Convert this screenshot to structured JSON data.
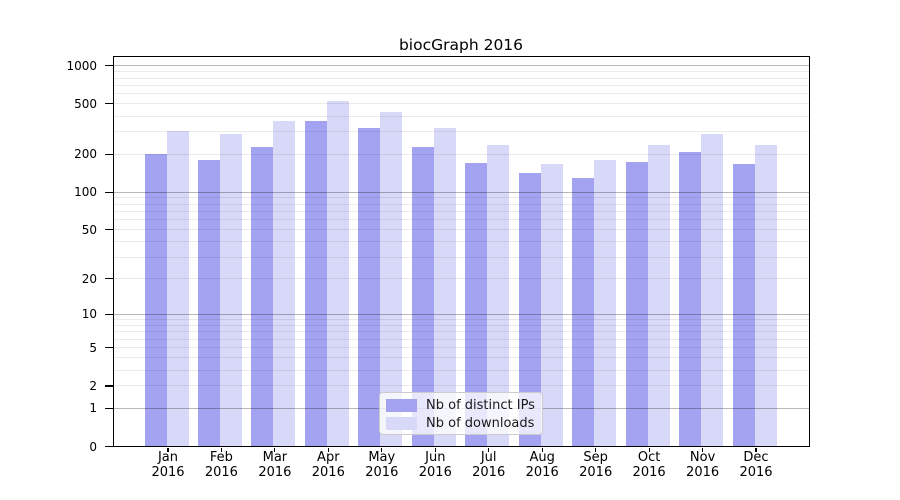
{
  "title": "biocGraph 2016",
  "chart_data": {
    "type": "bar",
    "title": "biocGraph 2016",
    "categories": [
      "Jan 2016",
      "Feb 2016",
      "Mar 2016",
      "Apr 2016",
      "May 2016",
      "Jun 2016",
      "Jul 2016",
      "Aug 2016",
      "Sep 2016",
      "Oct 2016",
      "Nov 2016",
      "Dec 2016"
    ],
    "series": [
      {
        "name": "Nb of distinct IPs",
        "color": "#a3a3f2",
        "values": [
          200,
          180,
          228,
          365,
          320,
          225,
          170,
          140,
          128,
          172,
          205,
          165
        ]
      },
      {
        "name": "Nb of downloads",
        "color": "#d8d8f8",
        "values": [
          305,
          285,
          365,
          520,
          430,
          320,
          235,
          165,
          177,
          235,
          285,
          235
        ]
      }
    ],
    "xlabel": "",
    "ylabel": "",
    "y_axis": {
      "scale": "log10(value+1)",
      "tick_labels": [
        "0",
        "1",
        "2",
        "5",
        "10",
        "20",
        "50",
        "100",
        "200",
        "500",
        "1000"
      ],
      "tick_values": [
        0,
        1,
        2,
        5,
        10,
        20,
        50,
        100,
        200,
        500,
        1000
      ],
      "ylim": [
        0,
        1000
      ]
    },
    "grid": {
      "orientation": "horizontal",
      "minor_values": [
        2,
        3,
        4,
        5,
        6,
        7,
        8,
        9,
        20,
        30,
        40,
        50,
        60,
        70,
        80,
        90,
        200,
        300,
        400,
        500,
        600,
        700,
        800,
        900
      ],
      "major_values": [
        1,
        10,
        100,
        1000
      ]
    },
    "legend": {
      "position": "bottom-center-inside",
      "entries": [
        "Nb of distinct IPs",
        "Nb of downloads"
      ]
    }
  }
}
